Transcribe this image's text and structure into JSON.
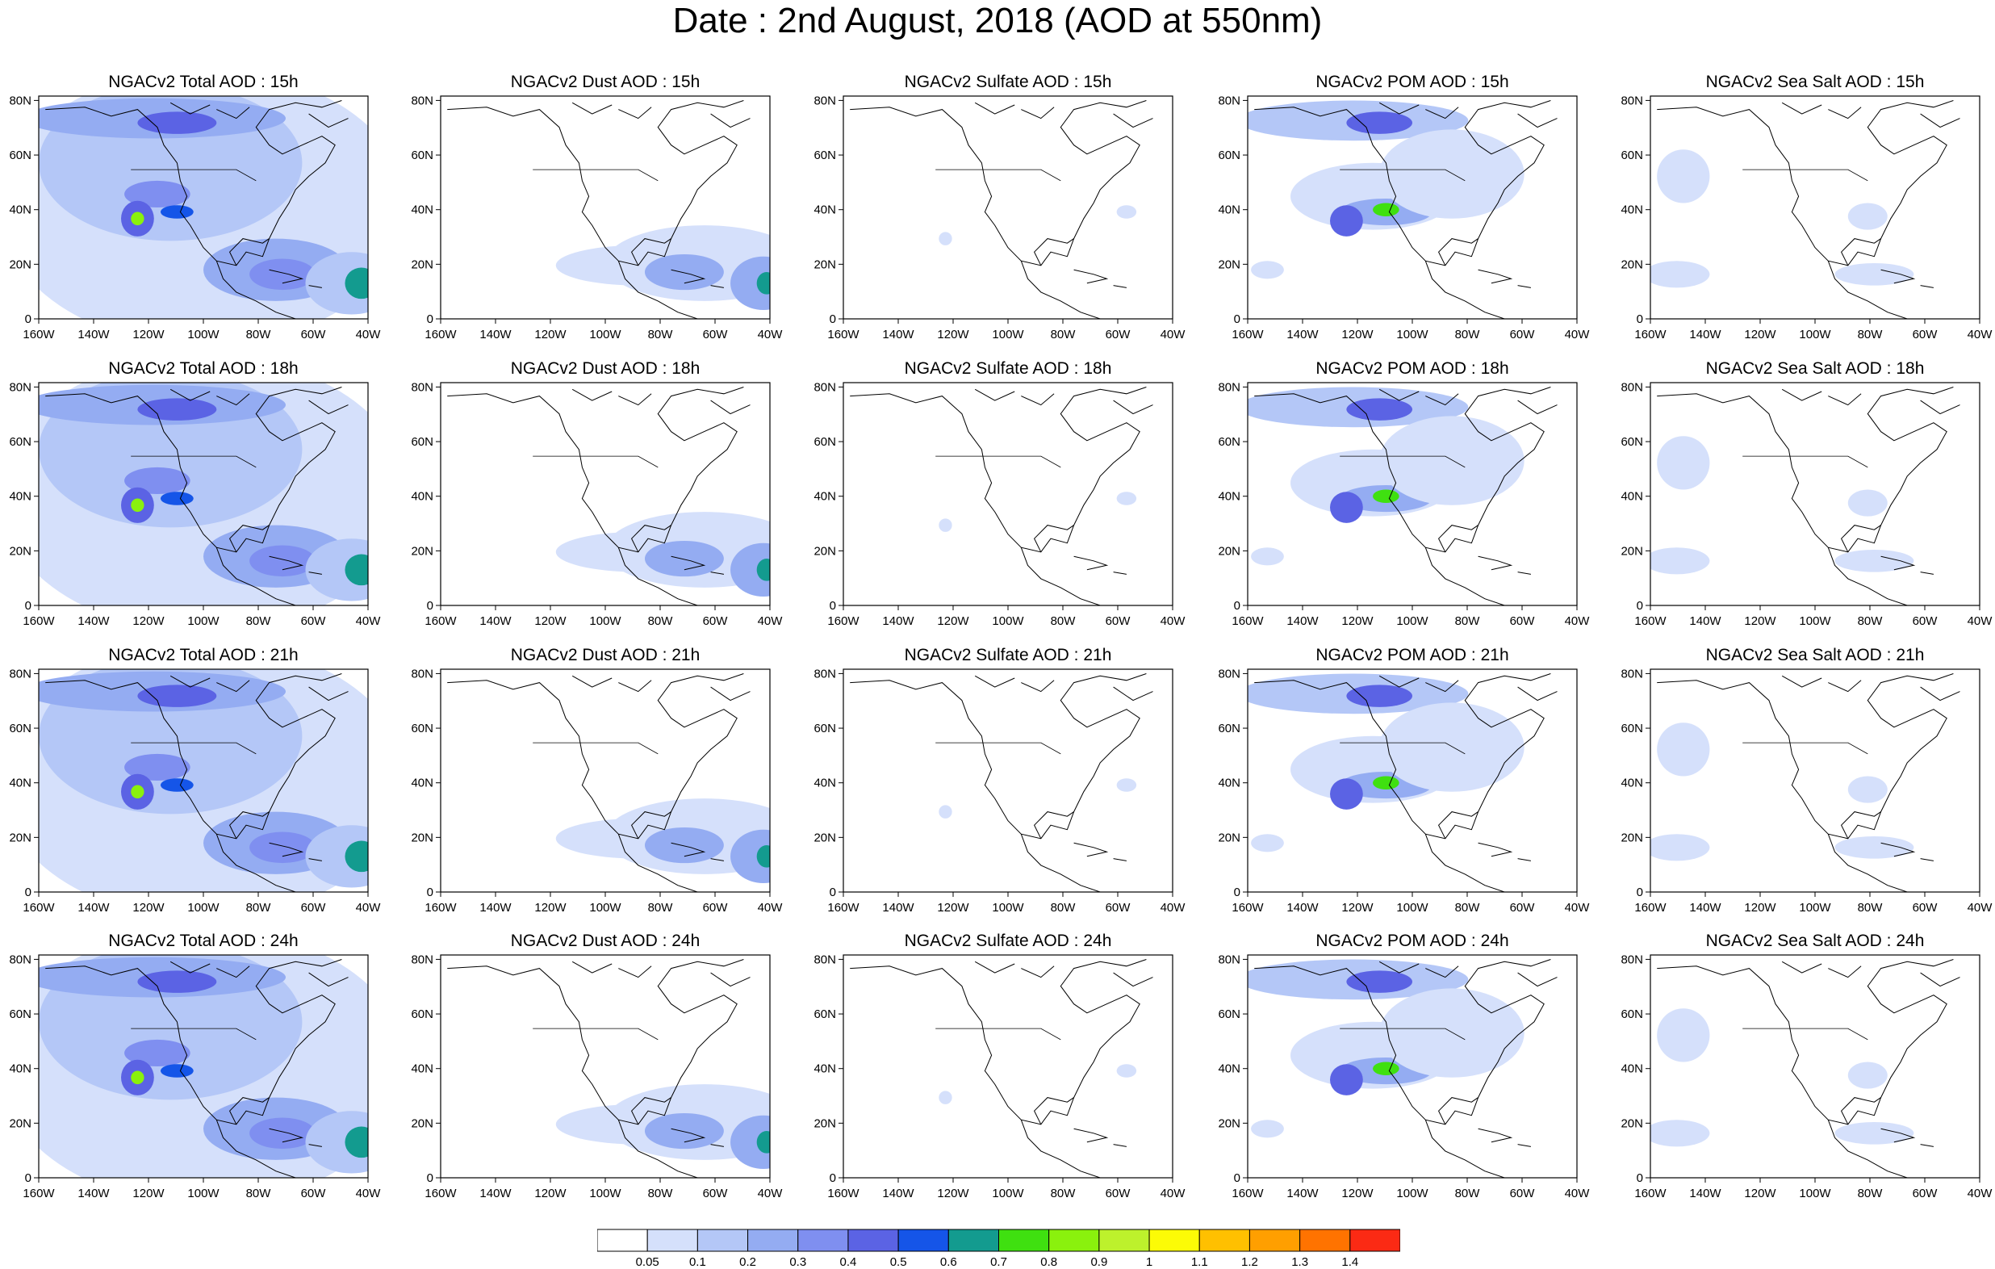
{
  "title": "Date : 2nd August, 2018 (AOD at 550nm)",
  "x_ticks": [
    "160W",
    "140W",
    "120W",
    "100W",
    "80W",
    "60W",
    "40W"
  ],
  "y_ticks": [
    "80N",
    "60N",
    "40N",
    "20N",
    "0"
  ],
  "panels": [
    {
      "title": "NGACv2 Total AOD : 15h",
      "species": "total",
      "hour": "15h"
    },
    {
      "title": "NGACv2 Dust AOD : 15h",
      "species": "dust",
      "hour": "15h"
    },
    {
      "title": "NGACv2 Sulfate AOD : 15h",
      "species": "sulfate",
      "hour": "15h"
    },
    {
      "title": "NGACv2 POM AOD : 15h",
      "species": "pom",
      "hour": "15h"
    },
    {
      "title": "NGACv2 Sea Salt AOD : 15h",
      "species": "seasalt",
      "hour": "15h"
    },
    {
      "title": "NGACv2 Total AOD : 18h",
      "species": "total",
      "hour": "18h"
    },
    {
      "title": "NGACv2 Dust AOD : 18h",
      "species": "dust",
      "hour": "18h"
    },
    {
      "title": "NGACv2 Sulfate AOD : 18h",
      "species": "sulfate",
      "hour": "18h"
    },
    {
      "title": "NGACv2 POM AOD : 18h",
      "species": "pom",
      "hour": "18h"
    },
    {
      "title": "NGACv2 Sea Salt AOD : 18h",
      "species": "seasalt",
      "hour": "18h"
    },
    {
      "title": "NGACv2 Total AOD : 21h",
      "species": "total",
      "hour": "21h"
    },
    {
      "title": "NGACv2 Dust AOD : 21h",
      "species": "dust",
      "hour": "21h"
    },
    {
      "title": "NGACv2 Sulfate AOD : 21h",
      "species": "sulfate",
      "hour": "21h"
    },
    {
      "title": "NGACv2 POM AOD : 21h",
      "species": "pom",
      "hour": "21h"
    },
    {
      "title": "NGACv2 Sea Salt AOD : 21h",
      "species": "seasalt",
      "hour": "21h"
    },
    {
      "title": "NGACv2 Total AOD : 24h",
      "species": "total",
      "hour": "24h"
    },
    {
      "title": "NGACv2 Dust AOD : 24h",
      "species": "dust",
      "hour": "24h"
    },
    {
      "title": "NGACv2 Sulfate AOD : 24h",
      "species": "sulfate",
      "hour": "24h"
    },
    {
      "title": "NGACv2 POM AOD : 24h",
      "species": "pom",
      "hour": "24h"
    },
    {
      "title": "NGACv2 Sea Salt  AOD : 24h",
      "species": "seasalt",
      "hour": "24h"
    }
  ],
  "colorbar": {
    "labels": [
      "0.05",
      "0.1",
      "0.2",
      "0.3",
      "0.4",
      "0.5",
      "0.6",
      "0.7",
      "0.8",
      "0.9",
      "1",
      "1.1",
      "1.2",
      "1.3",
      "1.4"
    ],
    "colors": [
      "#ffffff",
      "#d5e0fb",
      "#b4c7f7",
      "#94acf2",
      "#7f8ff0",
      "#5b63e4",
      "#1555e8",
      "#139b8f",
      "#3fe010",
      "#8af10d",
      "#bdf12c",
      "#fcfb06",
      "#ffc000",
      "#ff9f00",
      "#ff7300",
      "#fb2a14"
    ]
  }
}
